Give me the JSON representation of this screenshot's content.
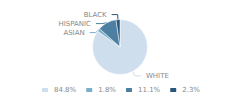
{
  "chart_data": {
    "type": "pie",
    "categories": [
      "WHITE",
      "ASIAN",
      "HISPANIC",
      "BLACK"
    ],
    "values": [
      84.8,
      1.8,
      11.1,
      2.3
    ],
    "value_labels": [
      "84.8%",
      "1.8%",
      "11.1%",
      "2.3%"
    ],
    "colors": [
      "#cfdeed",
      "#7aafc9",
      "#4d7fa3",
      "#2a567a"
    ],
    "legend": "bottom"
  }
}
